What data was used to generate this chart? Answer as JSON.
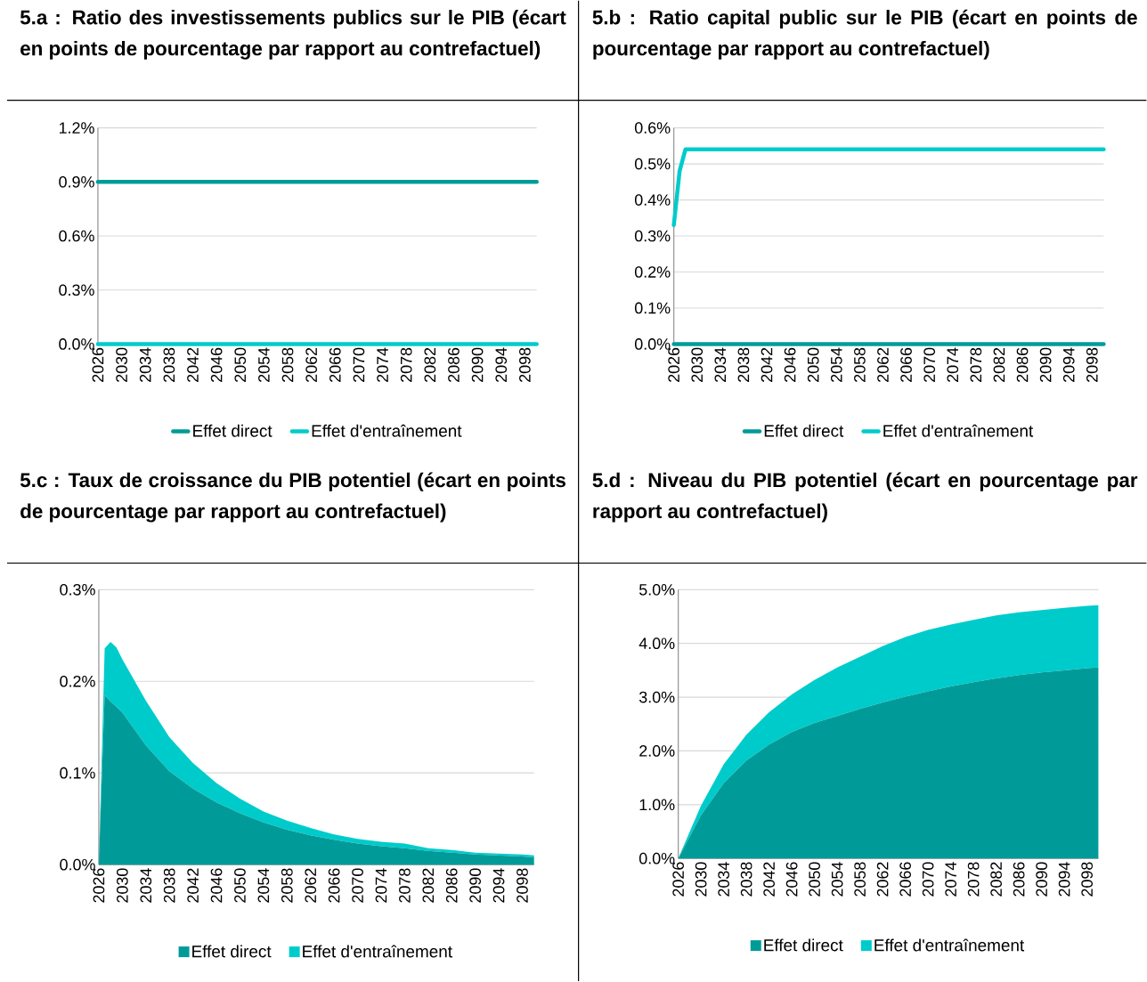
{
  "chart_data": [
    {
      "type": "line",
      "title": "5.a : Ratio des investissements publics sur le PIB (écart en points de pourcentage par rapport au contrefactuel)",
      "x": [
        2026,
        2100
      ],
      "series": [
        {
          "name": "Effet direct",
          "color": "#009b98",
          "values": [
            0.9,
            0.9
          ]
        },
        {
          "name": "Effet d'entraînement",
          "color": "#00cbcb",
          "values": [
            0,
            0
          ]
        }
      ],
      "xlim": [
        2026,
        2100
      ],
      "xticks": [
        2026,
        2030,
        2034,
        2038,
        2042,
        2046,
        2050,
        2054,
        2058,
        2062,
        2066,
        2070,
        2074,
        2078,
        2082,
        2086,
        2090,
        2094,
        2098
      ],
      "ylim": [
        0,
        1.2
      ],
      "yticks": [
        {
          "value": 0,
          "label": "0.0%"
        },
        {
          "value": 0.3,
          "label": "0.3%"
        },
        {
          "value": 0.6,
          "label": "0.6%"
        },
        {
          "value": 0.9,
          "label": "0.9%"
        },
        {
          "value": 1.2,
          "label": "1.2%"
        }
      ],
      "grid": "y",
      "legend": "bottom"
    },
    {
      "type": "line",
      "title": "5.b : Ratio capital public sur le PIB (écart en points de pourcentage par rapport au contrefactuel)",
      "x": [
        2026,
        2027,
        2028,
        2100
      ],
      "series": [
        {
          "name": "Effet direct",
          "color": "#009b98",
          "values": [
            0,
            0,
            0,
            0
          ]
        },
        {
          "name": "Effet d'entraînement",
          "color": "#00cbcb",
          "values": [
            0.33,
            0.48,
            0.54,
            0.54
          ]
        }
      ],
      "xlim": [
        2026,
        2100
      ],
      "xticks": [
        2026,
        2030,
        2034,
        2038,
        2042,
        2046,
        2050,
        2054,
        2058,
        2062,
        2066,
        2070,
        2074,
        2078,
        2082,
        2086,
        2090,
        2094,
        2098
      ],
      "ylim": [
        0,
        0.6
      ],
      "yticks": [
        {
          "value": 0,
          "label": "0.0%"
        },
        {
          "value": 0.1,
          "label": "0.1%"
        },
        {
          "value": 0.2,
          "label": "0.2%"
        },
        {
          "value": 0.3,
          "label": "0.3%"
        },
        {
          "value": 0.4,
          "label": "0.4%"
        },
        {
          "value": 0.5,
          "label": "0.5%"
        },
        {
          "value": 0.6,
          "label": "0.6%"
        }
      ],
      "grid": "y",
      "legend": "bottom"
    },
    {
      "type": "area",
      "stacked": true,
      "title": "5.c : Taux de croissance du PIB potentiel (écart en points de pourcentage par rapport au contrefactuel)",
      "x": [
        2026,
        2027,
        2028,
        2029,
        2030,
        2034,
        2038,
        2042,
        2046,
        2050,
        2054,
        2058,
        2062,
        2066,
        2070,
        2074,
        2078,
        2082,
        2086,
        2090,
        2094,
        2098,
        2100
      ],
      "series": [
        {
          "name": "Effet direct",
          "color": "#009b98",
          "values": [
            0,
            0.185,
            0.178,
            0.172,
            0.166,
            0.13,
            0.102,
            0.083,
            0.068,
            0.056,
            0.046,
            0.038,
            0.032,
            0.027,
            0.023,
            0.02,
            0.018,
            0.015,
            0.013,
            0.011,
            0.01,
            0.009,
            0.008
          ]
        },
        {
          "name": "Effet d'entraînement",
          "color": "#00cbcb",
          "values": [
            0,
            0.051,
            0.065,
            0.065,
            0.058,
            0.049,
            0.037,
            0.028,
            0.021,
            0.016,
            0.012,
            0.01,
            0.008,
            0.006,
            0.005,
            0.005,
            0.005,
            0.003,
            0.003,
            0.002,
            0.002,
            0.002,
            0.002
          ]
        }
      ],
      "xlim": [
        2026,
        2100
      ],
      "xticks": [
        2026,
        2030,
        2034,
        2038,
        2042,
        2046,
        2050,
        2054,
        2058,
        2062,
        2066,
        2070,
        2074,
        2078,
        2082,
        2086,
        2090,
        2094,
        2098
      ],
      "ylim": [
        0,
        0.3
      ],
      "yticks": [
        {
          "value": 0,
          "label": "0.0%"
        },
        {
          "value": 0.1,
          "label": "0.1%"
        },
        {
          "value": 0.2,
          "label": "0.2%"
        },
        {
          "value": 0.3,
          "label": "0.3%"
        }
      ],
      "grid": "y",
      "legend": "bottom"
    },
    {
      "type": "area",
      "stacked": true,
      "title": "5.d : Niveau du PIB potentiel (écart en pourcentage par rapport au contrefactuel)",
      "x": [
        2026,
        2030,
        2034,
        2038,
        2042,
        2046,
        2050,
        2054,
        2058,
        2062,
        2066,
        2070,
        2074,
        2078,
        2082,
        2086,
        2090,
        2094,
        2098,
        2100
      ],
      "series": [
        {
          "name": "Effet direct",
          "color": "#009b98",
          "values": [
            0,
            0.8,
            1.4,
            1.82,
            2.12,
            2.35,
            2.52,
            2.65,
            2.78,
            2.9,
            3.01,
            3.11,
            3.2,
            3.28,
            3.35,
            3.41,
            3.46,
            3.5,
            3.54,
            3.55
          ]
        },
        {
          "name": "Effet d'entraînement",
          "color": "#00cbcb",
          "values": [
            0,
            0.18,
            0.35,
            0.48,
            0.6,
            0.7,
            0.8,
            0.9,
            0.97,
            1.05,
            1.11,
            1.14,
            1.15,
            1.16,
            1.17,
            1.17,
            1.16,
            1.16,
            1.16,
            1.16
          ]
        }
      ],
      "xlim": [
        2026,
        2100
      ],
      "xticks": [
        2026,
        2030,
        2034,
        2038,
        2042,
        2046,
        2050,
        2054,
        2058,
        2062,
        2066,
        2070,
        2074,
        2078,
        2082,
        2086,
        2090,
        2094,
        2098
      ],
      "ylim": [
        0,
        5
      ],
      "yticks": [
        {
          "value": 0,
          "label": "0.0%"
        },
        {
          "value": 1,
          "label": "1.0%"
        },
        {
          "value": 2,
          "label": "2.0%"
        },
        {
          "value": 3,
          "label": "3.0%"
        },
        {
          "value": 4,
          "label": "4.0%"
        },
        {
          "value": 5,
          "label": "5.0%"
        }
      ],
      "grid": "y",
      "legend": "bottom"
    }
  ]
}
